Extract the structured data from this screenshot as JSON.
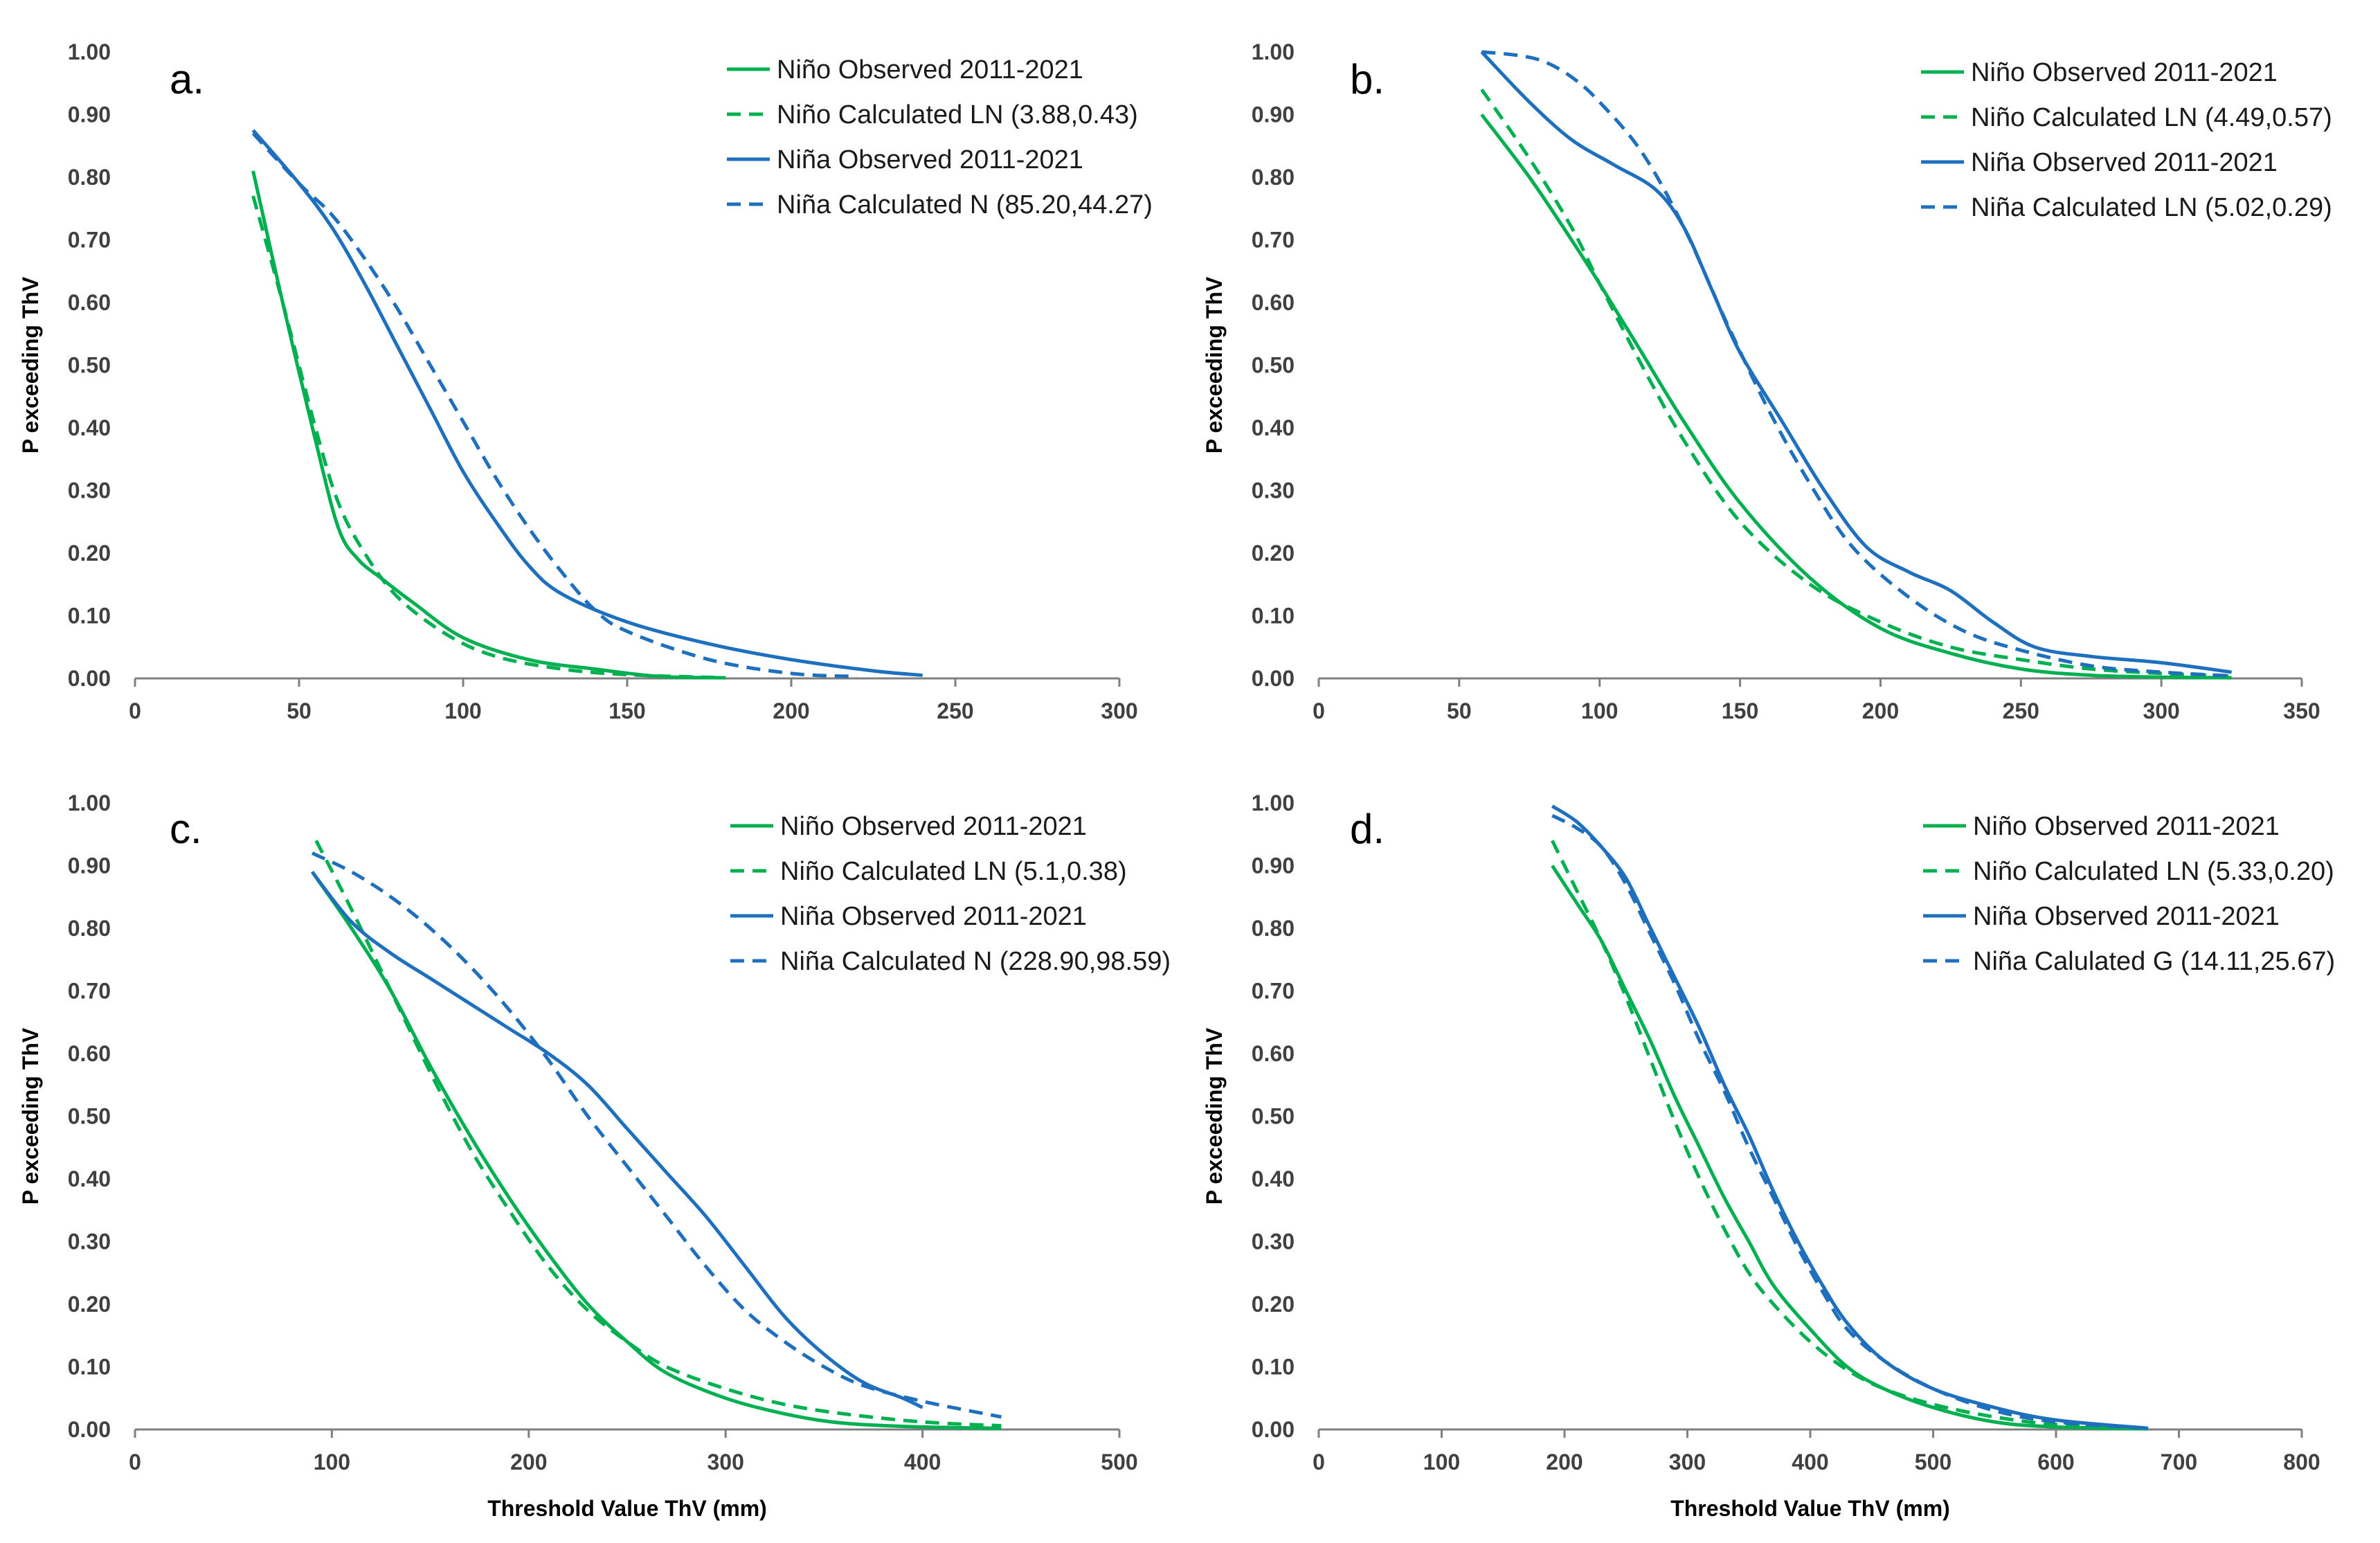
{
  "colors": {
    "nino": "#00b050",
    "nina": "#1f6fbf",
    "axis": "#7f7f7f"
  },
  "chart_data": [
    {
      "type": "line",
      "panel_label": "a.",
      "xlabel": "",
      "ylabel": "P exceeding ThV",
      "xlim": [
        0,
        300
      ],
      "ylim": [
        0,
        1
      ],
      "xticks": [
        "0",
        "50",
        "100",
        "150",
        "200",
        "250",
        "300"
      ],
      "yticks": [
        "0.00",
        "0.10",
        "0.20",
        "0.30",
        "0.40",
        "0.50",
        "0.60",
        "0.70",
        "0.80",
        "0.90",
        "1.00"
      ],
      "series": [
        {
          "name": "Niño Observed 2011-2021",
          "color": "#00b050",
          "dashed": false,
          "x": [
            36,
            45,
            55,
            62,
            68,
            75,
            85,
            100,
            120,
            140,
            160,
            180
          ],
          "y": [
            0.81,
            0.6,
            0.38,
            0.24,
            0.19,
            0.16,
            0.12,
            0.065,
            0.03,
            0.015,
            0.003,
            0.001
          ]
        },
        {
          "name": "Niño Calculated LN (3.88,0.43)",
          "color": "#00b050",
          "dashed": true,
          "x": [
            36,
            45,
            55,
            62,
            70,
            80,
            95,
            110,
            130,
            150,
            180
          ],
          "y": [
            0.77,
            0.6,
            0.4,
            0.28,
            0.2,
            0.13,
            0.07,
            0.035,
            0.015,
            0.006,
            0.001
          ]
        },
        {
          "name": "Niña Observed 2011-2021",
          "color": "#1f6fbf",
          "dashed": false,
          "x": [
            36,
            50,
            60,
            70,
            80,
            90,
            100,
            110,
            120,
            130,
            150,
            175,
            200,
            225,
            240
          ],
          "y": [
            0.875,
            0.79,
            0.72,
            0.63,
            0.53,
            0.43,
            0.33,
            0.25,
            0.18,
            0.135,
            0.09,
            0.055,
            0.03,
            0.012,
            0.005
          ]
        },
        {
          "name": "Niña Calculated N (85.20,44.27)",
          "color": "#1f6fbf",
          "dashed": true,
          "x": [
            36,
            50,
            60,
            70,
            80,
            90,
            100,
            110,
            120,
            130,
            140,
            150,
            175,
            200,
            220
          ],
          "y": [
            0.87,
            0.79,
            0.74,
            0.67,
            0.59,
            0.5,
            0.41,
            0.32,
            0.24,
            0.17,
            0.11,
            0.075,
            0.03,
            0.008,
            0.003
          ]
        }
      ]
    },
    {
      "type": "line",
      "panel_label": "b.",
      "xlabel": "",
      "ylabel": "P exceeding ThV",
      "xlim": [
        0,
        350
      ],
      "ylim": [
        0,
        1
      ],
      "xticks": [
        "0",
        "50",
        "100",
        "150",
        "200",
        "250",
        "300",
        "350"
      ],
      "yticks": [
        "0.00",
        "0.10",
        "0.20",
        "0.30",
        "0.40",
        "0.50",
        "0.60",
        "0.70",
        "0.80",
        "0.90",
        "1.00"
      ],
      "series": [
        {
          "name": "Niño Observed 2011-2021",
          "color": "#00b050",
          "dashed": false,
          "x": [
            58,
            75,
            90,
            100,
            115,
            130,
            150,
            175,
            200,
            225,
            250,
            275,
            300,
            325
          ],
          "y": [
            0.9,
            0.8,
            0.7,
            0.63,
            0.52,
            0.41,
            0.28,
            0.16,
            0.08,
            0.04,
            0.015,
            0.005,
            0.002,
            0.001
          ]
        },
        {
          "name": "Niño Calculated LN (4.49,0.57)",
          "color": "#00b050",
          "dashed": true,
          "x": [
            58,
            75,
            90,
            100,
            115,
            130,
            150,
            175,
            200,
            225,
            250,
            275,
            300,
            325
          ],
          "y": [
            0.94,
            0.83,
            0.72,
            0.63,
            0.5,
            0.38,
            0.25,
            0.15,
            0.09,
            0.05,
            0.03,
            0.015,
            0.008,
            0.004
          ]
        },
        {
          "name": "Niña Observed 2011-2021",
          "color": "#1f6fbf",
          "dashed": false,
          "x": [
            58,
            75,
            90,
            105,
            120,
            130,
            140,
            150,
            165,
            180,
            195,
            210,
            225,
            240,
            255,
            275,
            300,
            325
          ],
          "y": [
            1.0,
            0.92,
            0.86,
            0.82,
            0.78,
            0.72,
            0.62,
            0.52,
            0.41,
            0.3,
            0.21,
            0.17,
            0.14,
            0.09,
            0.05,
            0.035,
            0.025,
            0.01
          ]
        },
        {
          "name": "Niña Calculated LN (5.02,0.29)",
          "color": "#1f6fbf",
          "dashed": true,
          "x": [
            58,
            70,
            80,
            90,
            100,
            115,
            130,
            145,
            160,
            175,
            190,
            210,
            230,
            250,
            275,
            300,
            325
          ],
          "y": [
            1.0,
            0.995,
            0.985,
            0.96,
            0.92,
            0.84,
            0.72,
            0.57,
            0.43,
            0.31,
            0.21,
            0.13,
            0.075,
            0.045,
            0.02,
            0.01,
            0.004
          ]
        }
      ]
    },
    {
      "type": "line",
      "panel_label": "c.",
      "xlabel": "Threshold Value ThV (mm)",
      "ylabel": "P exceeding ThV",
      "xlim": [
        0,
        500
      ],
      "ylim": [
        0,
        1
      ],
      "xticks": [
        "0",
        "100",
        "200",
        "300",
        "400",
        "500"
      ],
      "yticks": [
        "0.00",
        "0.10",
        "0.20",
        "0.30",
        "0.40",
        "0.50",
        "0.60",
        "0.70",
        "0.80",
        "0.90",
        "1.00"
      ],
      "series": [
        {
          "name": "Niño Observed 2011-2021",
          "color": "#00b050",
          "dashed": false,
          "x": [
            90,
            110,
            130,
            150,
            170,
            190,
            210,
            230,
            250,
            270,
            300,
            330,
            360,
            400,
            440
          ],
          "y": [
            0.89,
            0.8,
            0.7,
            0.58,
            0.47,
            0.37,
            0.28,
            0.2,
            0.14,
            0.09,
            0.05,
            0.025,
            0.01,
            0.004,
            0.002
          ]
        },
        {
          "name": "Niño Calculated LN (5.1,0.38)",
          "color": "#00b050",
          "dashed": true,
          "x": [
            92,
            110,
            130,
            150,
            170,
            190,
            210,
            230,
            250,
            270,
            300,
            330,
            360,
            400,
            440
          ],
          "y": [
            0.94,
            0.83,
            0.7,
            0.57,
            0.45,
            0.35,
            0.26,
            0.19,
            0.14,
            0.1,
            0.065,
            0.04,
            0.025,
            0.012,
            0.006
          ]
        },
        {
          "name": "Niña Observed 2011-2021",
          "color": "#1f6fbf",
          "dashed": false,
          "x": [
            90,
            110,
            130,
            150,
            170,
            190,
            210,
            230,
            250,
            270,
            290,
            310,
            330,
            350,
            370,
            390,
            400
          ],
          "y": [
            0.89,
            0.81,
            0.76,
            0.72,
            0.68,
            0.64,
            0.6,
            0.55,
            0.48,
            0.41,
            0.34,
            0.26,
            0.18,
            0.12,
            0.075,
            0.05,
            0.035
          ]
        },
        {
          "name": "Niña Calculated N (228.90,98.59)",
          "color": "#1f6fbf",
          "dashed": true,
          "x": [
            90,
            110,
            130,
            150,
            170,
            190,
            210,
            230,
            250,
            270,
            290,
            310,
            330,
            350,
            370,
            400,
            440
          ],
          "y": [
            0.92,
            0.89,
            0.85,
            0.8,
            0.74,
            0.67,
            0.59,
            0.5,
            0.42,
            0.34,
            0.26,
            0.19,
            0.14,
            0.1,
            0.07,
            0.045,
            0.02
          ]
        }
      ]
    },
    {
      "type": "line",
      "panel_label": "d.",
      "xlabel": "Threshold Value ThV (mm)",
      "ylabel": "P exceeding ThV",
      "xlim": [
        0,
        800
      ],
      "ylim": [
        0,
        1
      ],
      "xticks": [
        "0",
        "100",
        "200",
        "300",
        "400",
        "500",
        "600",
        "700",
        "800"
      ],
      "yticks": [
        "0.00",
        "0.10",
        "0.20",
        "0.30",
        "0.40",
        "0.50",
        "0.60",
        "0.70",
        "0.80",
        "0.90",
        "1.00"
      ],
      "series": [
        {
          "name": "Niño Observed 2011-2021",
          "color": "#00b050",
          "dashed": false,
          "x": [
            190,
            210,
            230,
            250,
            270,
            290,
            310,
            330,
            350,
            370,
            400,
            430,
            460,
            500,
            550,
            600,
            675
          ],
          "y": [
            0.9,
            0.84,
            0.78,
            0.7,
            0.62,
            0.53,
            0.45,
            0.37,
            0.3,
            0.23,
            0.16,
            0.1,
            0.065,
            0.035,
            0.012,
            0.004,
            0.001
          ]
        },
        {
          "name": "Niño Calculated LN (5.33,0.20)",
          "color": "#00b050",
          "dashed": true,
          "x": [
            190,
            210,
            230,
            250,
            270,
            290,
            310,
            330,
            350,
            370,
            400,
            430,
            460,
            500,
            550,
            600,
            675
          ],
          "y": [
            0.94,
            0.86,
            0.78,
            0.69,
            0.59,
            0.49,
            0.4,
            0.32,
            0.25,
            0.2,
            0.14,
            0.095,
            0.065,
            0.04,
            0.02,
            0.008,
            0.002
          ]
        },
        {
          "name": "Niña Observed 2011-2021",
          "color": "#1f6fbf",
          "dashed": false,
          "x": [
            190,
            210,
            230,
            250,
            270,
            290,
            310,
            330,
            350,
            370,
            390,
            410,
            430,
            460,
            500,
            550,
            600,
            675
          ],
          "y": [
            0.995,
            0.97,
            0.93,
            0.88,
            0.8,
            0.72,
            0.64,
            0.55,
            0.47,
            0.38,
            0.3,
            0.23,
            0.17,
            0.11,
            0.065,
            0.035,
            0.015,
            0.002
          ]
        },
        {
          "name": "Niña Calulated G (14.11,25.67)",
          "color": "#1f6fbf",
          "dashed": true,
          "x": [
            190,
            210,
            230,
            250,
            270,
            290,
            310,
            330,
            350,
            370,
            390,
            410,
            430,
            460,
            500,
            550,
            600,
            675
          ],
          "y": [
            0.98,
            0.96,
            0.93,
            0.87,
            0.79,
            0.71,
            0.62,
            0.54,
            0.45,
            0.37,
            0.29,
            0.22,
            0.16,
            0.11,
            0.065,
            0.03,
            0.012,
            0.002
          ]
        }
      ]
    }
  ]
}
